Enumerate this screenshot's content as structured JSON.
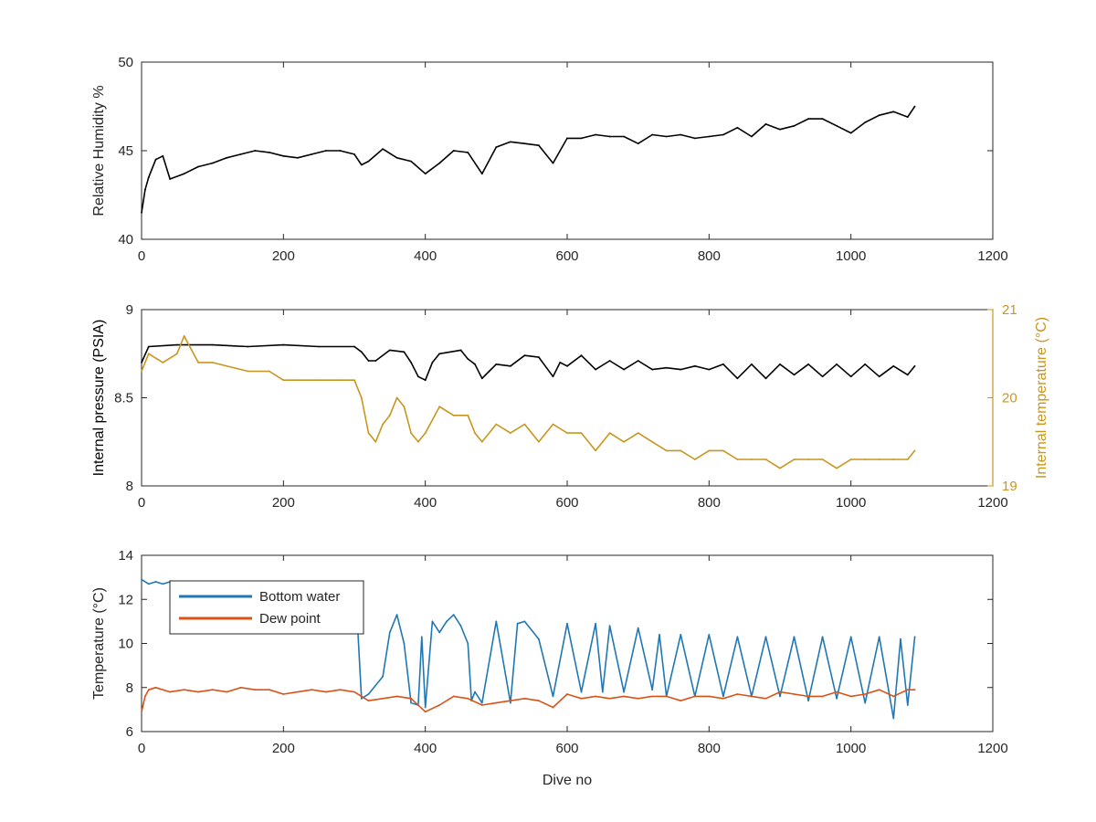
{
  "chart_data": [
    {
      "type": "line",
      "title": "",
      "xlabel": "",
      "ylabel": "Relative Humidity %",
      "xlim": [
        0,
        1200
      ],
      "ylim": [
        40,
        50
      ],
      "xticks": [
        "0",
        "200",
        "400",
        "600",
        "800",
        "1000",
        "1200"
      ],
      "yticks": [
        "40",
        "45",
        "50"
      ],
      "grid": false,
      "series": [
        {
          "color": "#000000",
          "x": [
            0,
            5,
            10,
            20,
            30,
            40,
            60,
            80,
            100,
            120,
            140,
            160,
            180,
            200,
            220,
            240,
            260,
            280,
            300,
            310,
            320,
            340,
            360,
            380,
            400,
            420,
            440,
            460,
            480,
            500,
            520,
            540,
            560,
            580,
            600,
            620,
            640,
            660,
            680,
            700,
            720,
            740,
            760,
            780,
            800,
            820,
            840,
            860,
            880,
            900,
            920,
            940,
            960,
            980,
            1000,
            1020,
            1040,
            1060,
            1080,
            1090
          ],
          "y": [
            41.5,
            42.8,
            43.5,
            44.5,
            44.7,
            43.4,
            43.7,
            44.1,
            44.3,
            44.6,
            44.8,
            45.0,
            44.9,
            44.7,
            44.6,
            44.8,
            45.0,
            45.0,
            44.8,
            44.2,
            44.4,
            45.1,
            44.6,
            44.4,
            43.7,
            44.3,
            45.0,
            44.9,
            43.7,
            45.2,
            45.5,
            45.4,
            45.3,
            44.3,
            45.7,
            45.7,
            45.9,
            45.8,
            45.8,
            45.4,
            45.9,
            45.8,
            45.9,
            45.7,
            45.8,
            45.9,
            46.3,
            45.8,
            46.5,
            46.2,
            46.4,
            46.8,
            46.8,
            46.4,
            46.0,
            46.6,
            47.0,
            47.2,
            46.9,
            47.5
          ]
        }
      ]
    },
    {
      "type": "line",
      "title": "",
      "xlabel": "",
      "ylabel": "Internal pressure (PSIA)",
      "ylabel_right": "Internal temperature (°C)",
      "xlim": [
        0,
        1200
      ],
      "ylim": [
        8,
        9
      ],
      "ylim_right": [
        19,
        21
      ],
      "xticks": [
        "0",
        "200",
        "400",
        "600",
        "800",
        "1000",
        "1200"
      ],
      "yticks": [
        "8",
        "8.5",
        "9"
      ],
      "yticks_right": [
        "19",
        "20",
        "21"
      ],
      "grid": false,
      "series": [
        {
          "color": "#000000",
          "axis": "left",
          "x": [
            0,
            10,
            50,
            100,
            150,
            200,
            250,
            300,
            310,
            320,
            330,
            350,
            370,
            380,
            390,
            400,
            410,
            420,
            450,
            460,
            470,
            480,
            490,
            500,
            520,
            540,
            560,
            580,
            590,
            600,
            620,
            640,
            660,
            680,
            700,
            720,
            740,
            760,
            780,
            800,
            820,
            840,
            860,
            880,
            900,
            920,
            940,
            960,
            980,
            1000,
            1020,
            1040,
            1060,
            1080,
            1090
          ],
          "y": [
            8.7,
            8.79,
            8.8,
            8.8,
            8.79,
            8.8,
            8.79,
            8.79,
            8.76,
            8.71,
            8.71,
            8.77,
            8.76,
            8.7,
            8.62,
            8.6,
            8.7,
            8.75,
            8.77,
            8.72,
            8.69,
            8.61,
            8.65,
            8.69,
            8.68,
            8.74,
            8.73,
            8.62,
            8.7,
            8.68,
            8.74,
            8.66,
            8.71,
            8.66,
            8.71,
            8.66,
            8.67,
            8.66,
            8.68,
            8.66,
            8.69,
            8.61,
            8.69,
            8.61,
            8.69,
            8.63,
            8.69,
            8.62,
            8.69,
            8.62,
            8.69,
            8.62,
            8.68,
            8.63,
            8.68
          ]
        },
        {
          "color": "#c8961e",
          "axis": "right",
          "x": [
            0,
            10,
            30,
            50,
            60,
            80,
            100,
            150,
            180,
            200,
            220,
            250,
            280,
            300,
            310,
            320,
            330,
            340,
            350,
            360,
            370,
            380,
            390,
            400,
            420,
            440,
            460,
            470,
            480,
            500,
            520,
            540,
            560,
            580,
            600,
            620,
            640,
            660,
            680,
            700,
            720,
            740,
            760,
            780,
            800,
            820,
            840,
            860,
            880,
            900,
            920,
            940,
            960,
            980,
            1000,
            1020,
            1040,
            1060,
            1080,
            1090
          ],
          "y": [
            20.3,
            20.5,
            20.4,
            20.5,
            20.7,
            20.4,
            20.4,
            20.3,
            20.3,
            20.2,
            20.2,
            20.2,
            20.2,
            20.2,
            20.0,
            19.6,
            19.5,
            19.7,
            19.8,
            20.0,
            19.9,
            19.6,
            19.5,
            19.6,
            19.9,
            19.8,
            19.8,
            19.6,
            19.5,
            19.7,
            19.6,
            19.7,
            19.5,
            19.7,
            19.6,
            19.6,
            19.4,
            19.6,
            19.5,
            19.6,
            19.5,
            19.4,
            19.4,
            19.3,
            19.4,
            19.4,
            19.3,
            19.3,
            19.3,
            19.2,
            19.3,
            19.3,
            19.3,
            19.2,
            19.3,
            19.3,
            19.3,
            19.3,
            19.3,
            19.4
          ]
        }
      ]
    },
    {
      "type": "line",
      "title": "",
      "xlabel": "Dive no",
      "ylabel": "Temperature (°C)",
      "xlim": [
        0,
        1200
      ],
      "ylim": [
        6,
        14
      ],
      "xticks": [
        "0",
        "200",
        "400",
        "600",
        "800",
        "1000",
        "1200"
      ],
      "yticks": [
        "6",
        "8",
        "10",
        "12",
        "14"
      ],
      "grid": false,
      "legend_position": "top-left",
      "series": [
        {
          "name": "Bottom water",
          "color": "#1f77b4",
          "x": [
            0,
            10,
            20,
            30,
            40,
            60,
            100,
            150,
            200,
            250,
            300,
            305,
            310,
            320,
            340,
            350,
            360,
            370,
            380,
            390,
            395,
            400,
            410,
            420,
            430,
            440,
            450,
            460,
            465,
            470,
            480,
            500,
            520,
            530,
            540,
            560,
            580,
            600,
            620,
            640,
            650,
            660,
            680,
            700,
            720,
            730,
            740,
            760,
            780,
            800,
            820,
            840,
            860,
            880,
            900,
            920,
            940,
            960,
            980,
            1000,
            1020,
            1040,
            1060,
            1070,
            1080,
            1090
          ],
          "y": [
            12.9,
            12.7,
            12.8,
            12.7,
            12.8,
            12.6,
            12.6,
            12.5,
            12.4,
            12.3,
            12.3,
            10.5,
            7.5,
            7.7,
            8.5,
            10.5,
            11.3,
            10.0,
            7.3,
            7.2,
            10.3,
            7.1,
            11.0,
            10.5,
            11.0,
            11.3,
            10.8,
            10.0,
            7.4,
            7.8,
            7.3,
            11.0,
            7.3,
            10.9,
            11.0,
            10.2,
            7.6,
            10.9,
            7.8,
            10.9,
            7.8,
            10.8,
            7.8,
            10.7,
            7.9,
            10.4,
            7.6,
            10.4,
            7.6,
            10.4,
            7.6,
            10.3,
            7.6,
            10.3,
            7.6,
            10.3,
            7.4,
            10.3,
            7.5,
            10.3,
            7.3,
            10.3,
            6.6,
            10.2,
            7.2,
            10.3
          ]
        },
        {
          "name": "Dew point",
          "color": "#d95319",
          "x": [
            0,
            5,
            10,
            20,
            40,
            60,
            80,
            100,
            120,
            140,
            160,
            180,
            200,
            220,
            240,
            260,
            280,
            300,
            320,
            340,
            360,
            380,
            400,
            420,
            440,
            460,
            480,
            500,
            520,
            540,
            560,
            580,
            600,
            620,
            640,
            660,
            680,
            700,
            720,
            740,
            760,
            780,
            800,
            820,
            840,
            860,
            880,
            900,
            920,
            940,
            960,
            980,
            1000,
            1020,
            1040,
            1060,
            1080,
            1090
          ],
          "y": [
            6.9,
            7.6,
            7.9,
            8.0,
            7.8,
            7.9,
            7.8,
            7.9,
            7.8,
            8.0,
            7.9,
            7.9,
            7.7,
            7.8,
            7.9,
            7.8,
            7.9,
            7.8,
            7.4,
            7.5,
            7.6,
            7.5,
            6.9,
            7.2,
            7.6,
            7.5,
            7.2,
            7.3,
            7.4,
            7.5,
            7.4,
            7.1,
            7.7,
            7.5,
            7.6,
            7.5,
            7.6,
            7.5,
            7.6,
            7.6,
            7.4,
            7.6,
            7.6,
            7.5,
            7.7,
            7.6,
            7.5,
            7.8,
            7.7,
            7.6,
            7.6,
            7.8,
            7.6,
            7.7,
            7.9,
            7.6,
            7.9,
            7.9
          ]
        }
      ]
    }
  ]
}
